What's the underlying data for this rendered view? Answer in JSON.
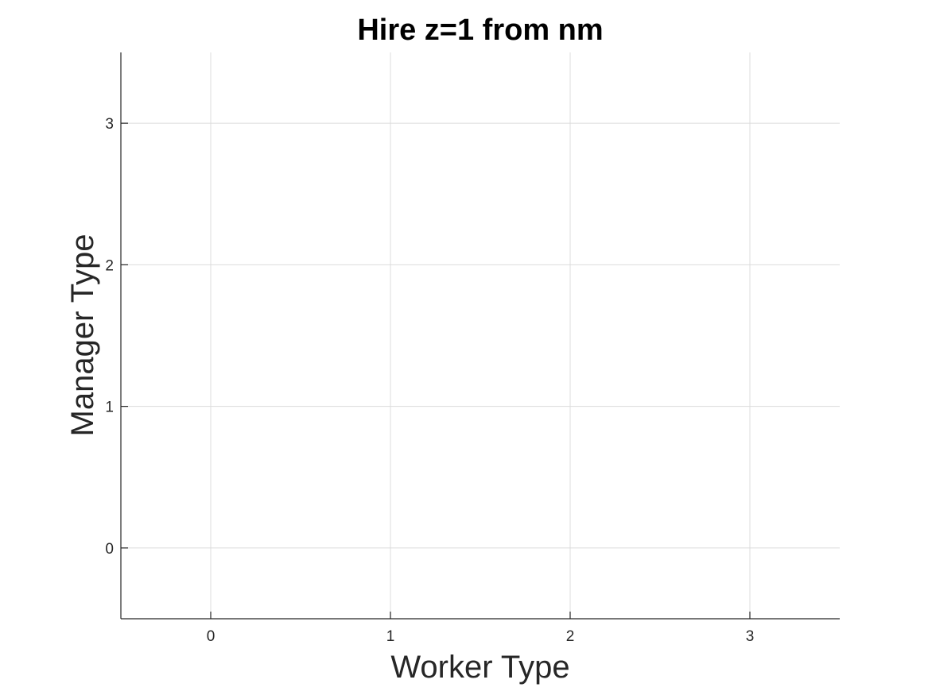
{
  "chart_data": {
    "type": "scatter",
    "title": "Hire z=1 from nm",
    "xlabel": "Worker Type",
    "ylabel": "Manager Type",
    "xlim": [
      -0.5,
      3.5
    ],
    "ylim": [
      -0.5,
      3.5
    ],
    "xticks": [
      0,
      1,
      2,
      3
    ],
    "yticks": [
      0,
      1,
      2,
      3
    ],
    "xtick_labels": [
      "0",
      "1",
      "2",
      "3"
    ],
    "ytick_labels": [
      "0",
      "1",
      "2",
      "3"
    ],
    "grid": true,
    "series": [
      {
        "x": [],
        "y": []
      }
    ]
  }
}
